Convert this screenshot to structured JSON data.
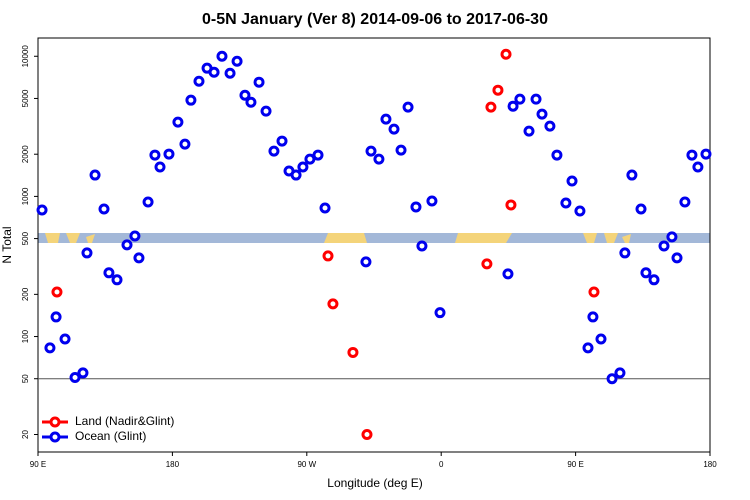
{
  "chart_data": {
    "type": "scatter",
    "title": "0-5N January (Ver 8)   2014-09-06 to 2017-06-30",
    "x_label": "Longitude (deg E)",
    "y_label": "N Total",
    "xlim": [
      90,
      540
    ],
    "xticks": [
      {
        "value": 90,
        "label": "90 E"
      },
      {
        "value": 180,
        "label": "180"
      },
      {
        "value": 270,
        "label": "90 W"
      },
      {
        "value": 360,
        "label": "0"
      },
      {
        "value": 450,
        "label": "90 E"
      },
      {
        "value": 540,
        "label": "180"
      }
    ],
    "ylim": [
      15,
      13500
    ],
    "yticks": [
      20,
      50,
      100,
      200,
      500,
      1000,
      2000,
      5000,
      10000
    ],
    "log_y": true,
    "hline": 50,
    "legend": "bottom-left",
    "series": [
      {
        "name": "Land (Nadir&Glint)",
        "color": "#ff0000",
        "x": [
          102.7,
          284.2,
          287.5,
          300.9,
          310.3,
          390.6,
          393.3,
          398.0,
          403.4,
          406.7,
          462.3
        ],
        "values": [
          208,
          376,
          171,
          77,
          20,
          330,
          4333,
          5727,
          10333,
          869,
          208
        ]
      },
      {
        "name": "Ocean (Glint)",
        "color": "#0000ee",
        "x": [
          92.7,
          98.0,
          102.1,
          108.1,
          114.8,
          120.1,
          122.8,
          128.2,
          134.2,
          137.5,
          142.9,
          149.6,
          154.9,
          157.6,
          163.7,
          168.3,
          171.7,
          177.7,
          183.7,
          188.4,
          192.4,
          197.8,
          203.2,
          207.9,
          213.2,
          218.6,
          223.3,
          228.6,
          232.6,
          238.0,
          242.7,
          248.0,
          253.4,
          258.1,
          262.8,
          267.4,
          272.1,
          277.5,
          282.2,
          309.6,
          313.0,
          318.3,
          323.0,
          328.4,
          333.1,
          337.8,
          343.1,
          347.1,
          353.8,
          359.2,
          404.7,
          408.1,
          412.7,
          418.8,
          423.5,
          427.5,
          432.8,
          437.5,
          443.5,
          447.6,
          452.9,
          458.3,
          461.6,
          467.0,
          474.4,
          479.7,
          483.0,
          487.7,
          493.8,
          497.1,
          502.5,
          509.2,
          514.5,
          517.9,
          523.2,
          527.9,
          531.9,
          537.3
        ],
        "values": [
          800,
          83,
          138,
          96,
          51,
          55,
          395,
          1420,
          813,
          285,
          254,
          451,
          522,
          364,
          912,
          1972,
          1620,
          2005,
          3388,
          2361,
          4860,
          6637,
          8222,
          7695,
          10000,
          7568,
          9213,
          5272,
          4701,
          6531,
          4057,
          2104,
          2482,
          1517,
          1420,
          1620,
          1846,
          1972,
          827,
          341,
          2104,
          1846,
          3558,
          3020,
          2140,
          4333,
          841,
          443,
          927,
          148,
          280,
          4403,
          4941,
          2924,
          4941,
          3863,
          3172,
          1972,
          897,
          1287,
          787,
          83,
          138,
          96,
          50,
          55,
          395,
          1420,
          813,
          285,
          254,
          443,
          514,
          364,
          912,
          1972,
          1620,
          2005
        ]
      }
    ]
  }
}
